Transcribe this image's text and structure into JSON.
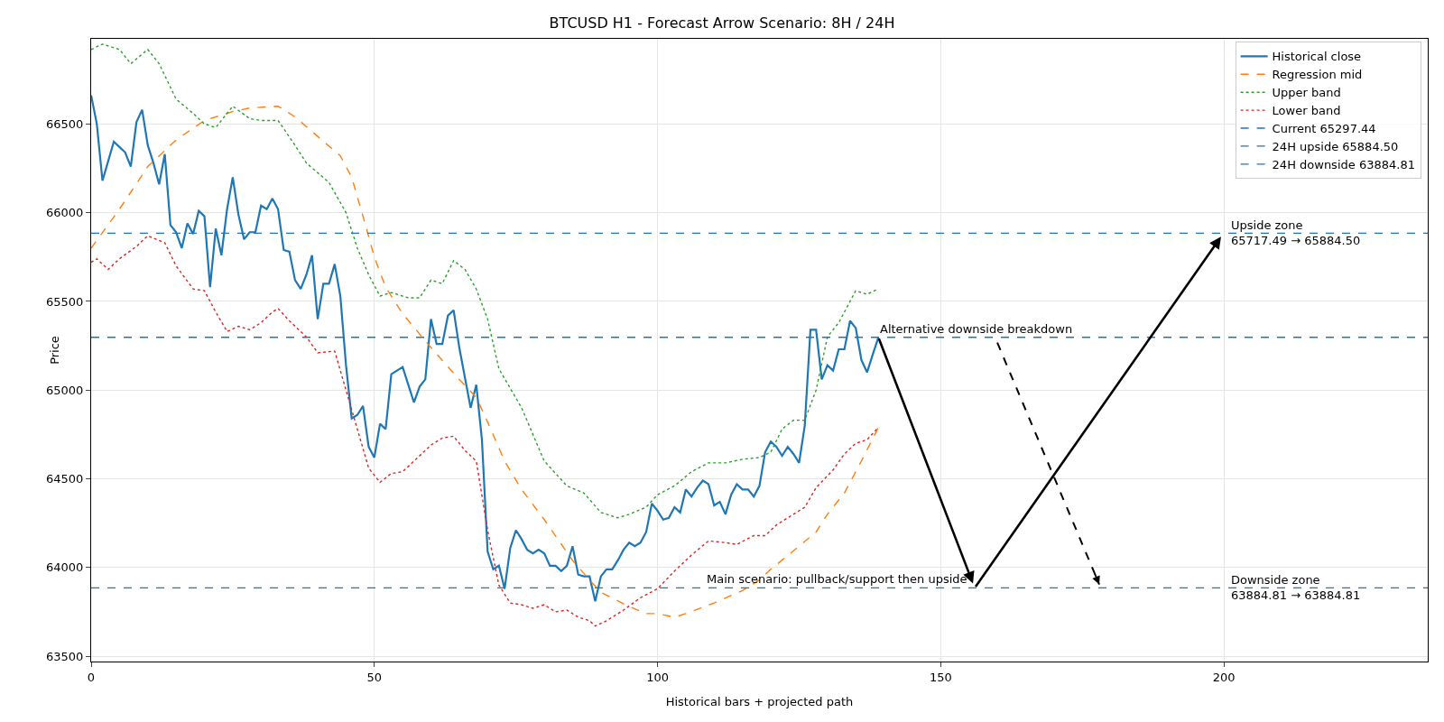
{
  "chart_data": {
    "type": "line",
    "title": "BTCUSD H1 - Forecast Arrow Scenario: 8H / 24H",
    "xlabel": "Historical bars + projected path",
    "ylabel": "Price",
    "x": [
      0,
      1,
      2,
      3,
      4,
      5,
      6,
      7,
      8,
      9,
      10,
      11,
      12,
      13,
      14,
      15,
      16,
      17,
      18,
      19,
      20,
      21,
      22,
      23,
      24,
      25,
      26,
      27,
      28,
      29,
      30,
      31,
      32,
      33,
      34,
      35,
      36,
      37,
      38,
      39,
      40,
      41,
      42,
      43,
      44,
      45,
      46,
      47,
      48,
      49,
      50,
      51,
      52,
      53,
      54,
      55,
      56,
      57,
      58,
      59,
      60,
      61,
      62,
      63,
      64,
      65,
      66,
      67,
      68,
      69,
      70,
      71,
      72,
      73,
      74,
      75,
      76,
      77,
      78,
      79,
      80,
      81,
      82,
      83,
      84,
      85,
      86,
      87,
      88,
      89,
      90,
      91,
      92,
      93,
      94,
      95,
      96,
      97,
      98,
      99,
      100,
      101,
      102,
      103,
      104,
      105,
      106,
      107,
      108,
      109,
      110,
      111,
      112,
      113,
      114,
      115,
      116,
      117,
      118,
      119,
      120,
      121,
      122,
      123,
      124,
      125,
      126,
      127,
      128,
      129,
      130,
      131,
      132,
      133,
      134,
      135,
      136,
      137,
      138,
      139
    ],
    "series": [
      {
        "name": "Historical close",
        "color": "#1f77b4",
        "line_style": "solid",
        "values": [
          66661,
          66500,
          66180,
          66290,
          66400,
          66370,
          66340,
          66260,
          66510,
          66580,
          66380,
          66280,
          66160,
          66330,
          65930,
          65890,
          65800,
          65940,
          65880,
          66010,
          65980,
          65580,
          65910,
          65760,
          66020,
          66200,
          65990,
          65850,
          65890,
          65890,
          66040,
          66020,
          66080,
          66020,
          65790,
          65780,
          65620,
          65570,
          65650,
          65760,
          65400,
          65600,
          65600,
          65710,
          65530,
          65140,
          64840,
          64860,
          64910,
          64680,
          64620,
          64810,
          64780,
          65090,
          65110,
          65130,
          65030,
          64930,
          65020,
          65060,
          65400,
          65260,
          65260,
          65420,
          65450,
          65240,
          65070,
          64900,
          65030,
          64720,
          64090,
          63990,
          64010,
          63880,
          64110,
          64210,
          64160,
          64100,
          64080,
          64100,
          64080,
          64010,
          64010,
          63980,
          64010,
          64120,
          63960,
          63950,
          63950,
          63810,
          63950,
          63990,
          63990,
          64040,
          64100,
          64140,
          64120,
          64140,
          64200,
          64360,
          64320,
          64270,
          64280,
          64340,
          64310,
          64440,
          64400,
          64450,
          64490,
          64470,
          64350,
          64370,
          64300,
          64410,
          64470,
          64440,
          64440,
          64400,
          64460,
          64650,
          64710,
          64680,
          64630,
          64680,
          64640,
          64590,
          64800,
          65340,
          65340,
          65060,
          65140,
          65110,
          65230,
          65230,
          65390,
          65350,
          65170,
          65100,
          65200,
          65297
        ]
      },
      {
        "name": "Regression mid",
        "color": "#ff7f0e",
        "line_style": "dashed",
        "x": [
          0,
          5,
          10,
          15,
          20,
          25,
          28,
          33,
          36,
          40,
          44,
          46,
          48,
          50,
          52,
          55,
          60,
          65,
          68,
          70,
          73,
          76,
          80,
          85,
          88,
          90,
          95,
          98,
          100,
          103,
          105,
          110,
          115,
          118,
          120,
          125,
          128,
          130,
          133,
          136,
          139
        ],
        "values": [
          65800,
          66020,
          66260,
          66410,
          66520,
          66570,
          66590,
          66600,
          66540,
          66430,
          66320,
          66200,
          65980,
          65750,
          65580,
          65430,
          65240,
          65060,
          64960,
          64820,
          64600,
          64440,
          64270,
          64040,
          63930,
          63860,
          63780,
          63740,
          63740,
          63720,
          63740,
          63800,
          63870,
          63930,
          63990,
          64120,
          64200,
          64300,
          64420,
          64600,
          64790
        ]
      },
      {
        "name": "Upper band",
        "color": "#2ca02c",
        "line_style": "dotted",
        "x": [
          0,
          2,
          5,
          7,
          10,
          12,
          15,
          18,
          20,
          22,
          25,
          28,
          30,
          33,
          36,
          38,
          42,
          45,
          47,
          49,
          51,
          53,
          56,
          58,
          60,
          62,
          64,
          66,
          68,
          70,
          72,
          76,
          80,
          84,
          87,
          90,
          93,
          95,
          98,
          100,
          103,
          106,
          109,
          112,
          115,
          118,
          120,
          122,
          124,
          126,
          128,
          130,
          132,
          134,
          135,
          137,
          139
        ],
        "values": [
          66920,
          66950,
          66920,
          66840,
          66920,
          66840,
          66640,
          66560,
          66500,
          66480,
          66600,
          66530,
          66520,
          66520,
          66380,
          66280,
          66170,
          66000,
          65800,
          65650,
          65530,
          65550,
          65520,
          65520,
          65620,
          65600,
          65730,
          65680,
          65570,
          65400,
          65120,
          64900,
          64600,
          64460,
          64420,
          64310,
          64280,
          64300,
          64340,
          64410,
          64460,
          64540,
          64590,
          64590,
          64610,
          64620,
          64650,
          64780,
          64830,
          64830,
          65000,
          65300,
          65380,
          65500,
          65560,
          65540,
          65570
        ]
      },
      {
        "name": "Lower band",
        "color": "#d62728",
        "line_style": "dotted",
        "x": [
          0,
          1,
          3,
          5,
          8,
          10,
          13,
          15,
          18,
          20,
          22,
          24,
          26,
          28,
          30,
          32,
          33,
          35,
          38,
          40,
          43,
          45,
          47,
          49,
          51,
          53,
          55,
          57,
          60,
          62,
          64,
          66,
          68,
          70,
          72,
          74,
          76,
          78,
          80,
          82,
          84,
          86,
          88,
          89,
          91,
          94,
          97,
          100,
          103,
          106,
          109,
          112,
          114,
          117,
          119,
          121,
          124,
          126,
          128,
          131,
          133,
          135,
          137,
          139
        ],
        "values": [
          65720,
          65740,
          65680,
          65740,
          65810,
          65870,
          65830,
          65700,
          65570,
          65560,
          65440,
          65330,
          65360,
          65340,
          65380,
          65440,
          65460,
          65390,
          65300,
          65210,
          65220,
          65000,
          64780,
          64560,
          64480,
          64530,
          64540,
          64600,
          64690,
          64730,
          64740,
          64660,
          64600,
          64210,
          63900,
          63800,
          63790,
          63770,
          63790,
          63750,
          63760,
          63720,
          63700,
          63670,
          63700,
          63760,
          63830,
          63880,
          63980,
          64070,
          64150,
          64140,
          64130,
          64180,
          64180,
          64240,
          64300,
          64340,
          64450,
          64550,
          64640,
          64700,
          64720,
          64790
        ]
      }
    ],
    "ref_lines": [
      {
        "axis": "y",
        "value": 65297.44,
        "label": "Current 65297.44",
        "color": "#1f77b4",
        "line_style": "dashed"
      },
      {
        "axis": "y",
        "value": 65884.5,
        "label": "24H upside 65884.50",
        "color": "#1f77b4",
        "line_style": "dashed"
      },
      {
        "axis": "y",
        "value": 63884.81,
        "label": "24H downside 63884.81",
        "color": "#1f77b4",
        "line_style": "dashed"
      }
    ],
    "annotations": [
      {
        "text": "Alternative downside breakdown",
        "x": 139,
        "y": 65297.44
      },
      {
        "text": "Main scenario: pullback/support then upside",
        "x": 156,
        "y": 63884.81
      },
      {
        "text": "Upside zone\n65717.49 → 65884.50",
        "x": 201,
        "y": 65884.5
      },
      {
        "text": "Downside zone\n63884.81 → 63884.81",
        "x": 201,
        "y": 63884.81
      }
    ],
    "xlim": [
      0,
      236
    ],
    "xticks": [
      0,
      50,
      100,
      150,
      200
    ],
    "ylim": [
      63470,
      66980
    ],
    "yticks": [
      63500,
      64000,
      64500,
      65000,
      65500,
      66000,
      66500
    ],
    "grid": true,
    "legend": "top right",
    "marker": "none"
  }
}
